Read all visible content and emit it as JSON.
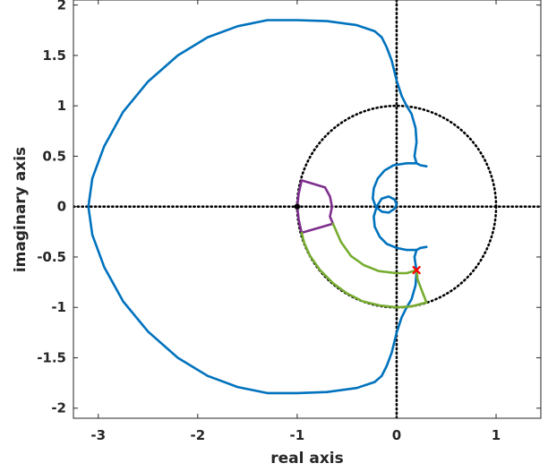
{
  "chart_data": {
    "type": "line",
    "title": "",
    "xlabel": "real axis",
    "ylabel": "imaginary axis",
    "xlim": [
      -3.25,
      1.45
    ],
    "ylim": [
      -2.1,
      2.05
    ],
    "xticks": [
      -3,
      -2,
      -1,
      0,
      1
    ],
    "yticks": [
      -2,
      -1.5,
      -1,
      -0.5,
      0,
      0.5,
      1,
      1.5,
      2
    ],
    "xtick_labels": [
      "-3",
      "-2",
      "-1",
      "0",
      "1"
    ],
    "ytick_labels": [
      "-2",
      "-1.5",
      "-1",
      "-0.5",
      "0",
      "0.5",
      "1",
      "1.5",
      "2"
    ],
    "grid": false,
    "colors": {
      "nyquist": "#0072BD",
      "region": "#7E2F8E",
      "sector": "#77AC30",
      "guide": "#000000",
      "intersection": "#FF0000"
    },
    "series": [
      {
        "key": "nyquist",
        "style": "solid",
        "points": [
          [
            0.3,
            0.4
          ],
          [
            0.24,
            0.41
          ],
          [
            0.2,
            0.43
          ],
          [
            0.18,
            0.5
          ],
          [
            0.2,
            0.64
          ],
          [
            0.19,
            0.78
          ],
          [
            0.15,
            0.92
          ],
          [
            0.1,
            1.0
          ],
          [
            0.05,
            1.1
          ],
          [
            0.0,
            1.25
          ],
          [
            -0.05,
            1.45
          ],
          [
            -0.1,
            1.58
          ],
          [
            -0.15,
            1.68
          ],
          [
            -0.22,
            1.74
          ],
          [
            -0.4,
            1.8
          ],
          [
            -0.7,
            1.84
          ],
          [
            -1.0,
            1.85
          ],
          [
            -1.3,
            1.85
          ],
          [
            -1.6,
            1.79
          ],
          [
            -1.9,
            1.68
          ],
          [
            -2.2,
            1.5
          ],
          [
            -2.5,
            1.24
          ],
          [
            -2.75,
            0.94
          ],
          [
            -2.94,
            0.6
          ],
          [
            -3.06,
            0.28
          ],
          [
            -3.1,
            0.0
          ],
          [
            -3.06,
            -0.28
          ],
          [
            -2.94,
            -0.6
          ],
          [
            -2.75,
            -0.94
          ],
          [
            -2.5,
            -1.24
          ],
          [
            -2.2,
            -1.5
          ],
          [
            -1.9,
            -1.68
          ],
          [
            -1.6,
            -1.79
          ],
          [
            -1.3,
            -1.85
          ],
          [
            -1.0,
            -1.85
          ],
          [
            -0.7,
            -1.84
          ],
          [
            -0.4,
            -1.8
          ],
          [
            -0.22,
            -1.74
          ],
          [
            -0.15,
            -1.68
          ],
          [
            -0.1,
            -1.58
          ],
          [
            -0.05,
            -1.45
          ],
          [
            0.0,
            -1.25
          ],
          [
            0.05,
            -1.1
          ],
          [
            0.1,
            -1.0
          ],
          [
            0.15,
            -0.92
          ],
          [
            0.19,
            -0.78
          ],
          [
            0.2,
            -0.64
          ],
          [
            0.18,
            -0.5
          ],
          [
            0.2,
            -0.43
          ],
          [
            0.24,
            -0.41
          ],
          [
            0.3,
            -0.4
          ]
        ]
      },
      {
        "key": "nyquist",
        "style": "solid",
        "points": [
          [
            0.2,
            0.43
          ],
          [
            0.1,
            0.43
          ],
          [
            -0.03,
            0.41
          ],
          [
            -0.12,
            0.36
          ],
          [
            -0.19,
            0.28
          ],
          [
            -0.23,
            0.18
          ],
          [
            -0.24,
            0.08
          ],
          [
            -0.21,
            0.0
          ],
          [
            -0.15,
            -0.05
          ],
          [
            -0.08,
            -0.06
          ],
          [
            -0.02,
            -0.02
          ],
          [
            0.0,
            0.02
          ],
          [
            -0.02,
            0.07
          ],
          [
            -0.08,
            0.1
          ],
          [
            -0.15,
            0.08
          ],
          [
            -0.2,
            0.0
          ],
          [
            -0.23,
            -0.1
          ],
          [
            -0.22,
            -0.2
          ],
          [
            -0.17,
            -0.3
          ],
          [
            -0.1,
            -0.37
          ],
          [
            0.0,
            -0.41
          ],
          [
            0.1,
            -0.43
          ],
          [
            0.2,
            -0.43
          ]
        ]
      },
      {
        "key": "region",
        "style": "solid",
        "points": [
          [
            -0.955,
            0.26
          ],
          [
            -0.72,
            0.19
          ],
          [
            -0.67,
            0.1
          ],
          [
            -0.65,
            0.0
          ],
          [
            -0.67,
            -0.1
          ],
          [
            -0.64,
            -0.17
          ],
          [
            -0.955,
            -0.26
          ],
          [
            -0.985,
            -0.13
          ],
          [
            -1.0,
            0.0
          ],
          [
            -0.985,
            0.13
          ],
          [
            -0.955,
            0.26
          ]
        ]
      },
      {
        "key": "sector",
        "style": "solid",
        "points": [
          [
            -0.64,
            -0.17
          ],
          [
            -0.56,
            -0.35
          ],
          [
            -0.46,
            -0.49
          ],
          [
            -0.33,
            -0.58
          ],
          [
            -0.18,
            -0.64
          ],
          [
            0.0,
            -0.66
          ],
          [
            0.1,
            -0.66
          ],
          [
            0.2,
            -0.63
          ],
          [
            0.21,
            -0.72
          ],
          [
            0.26,
            -0.85
          ],
          [
            0.3,
            -0.95
          ],
          [
            0.15,
            -0.99
          ],
          [
            0.0,
            -1.0
          ],
          [
            -0.17,
            -0.98
          ],
          [
            -0.34,
            -0.94
          ],
          [
            -0.5,
            -0.86
          ],
          [
            -0.64,
            -0.76
          ],
          [
            -0.77,
            -0.63
          ],
          [
            -0.87,
            -0.49
          ],
          [
            -0.93,
            -0.36
          ],
          [
            -0.955,
            -0.26
          ]
        ]
      }
    ],
    "unit_circle": {
      "center": [
        0,
        0
      ],
      "radius": 1,
      "style": "dotted"
    },
    "axis_lines": {
      "style": "dotted"
    },
    "markers": [
      {
        "key": "guide",
        "shape": "dot",
        "point": [
          -1,
          0
        ]
      },
      {
        "key": "intersection",
        "shape": "x",
        "point": [
          0.2,
          -0.63
        ]
      }
    ]
  }
}
